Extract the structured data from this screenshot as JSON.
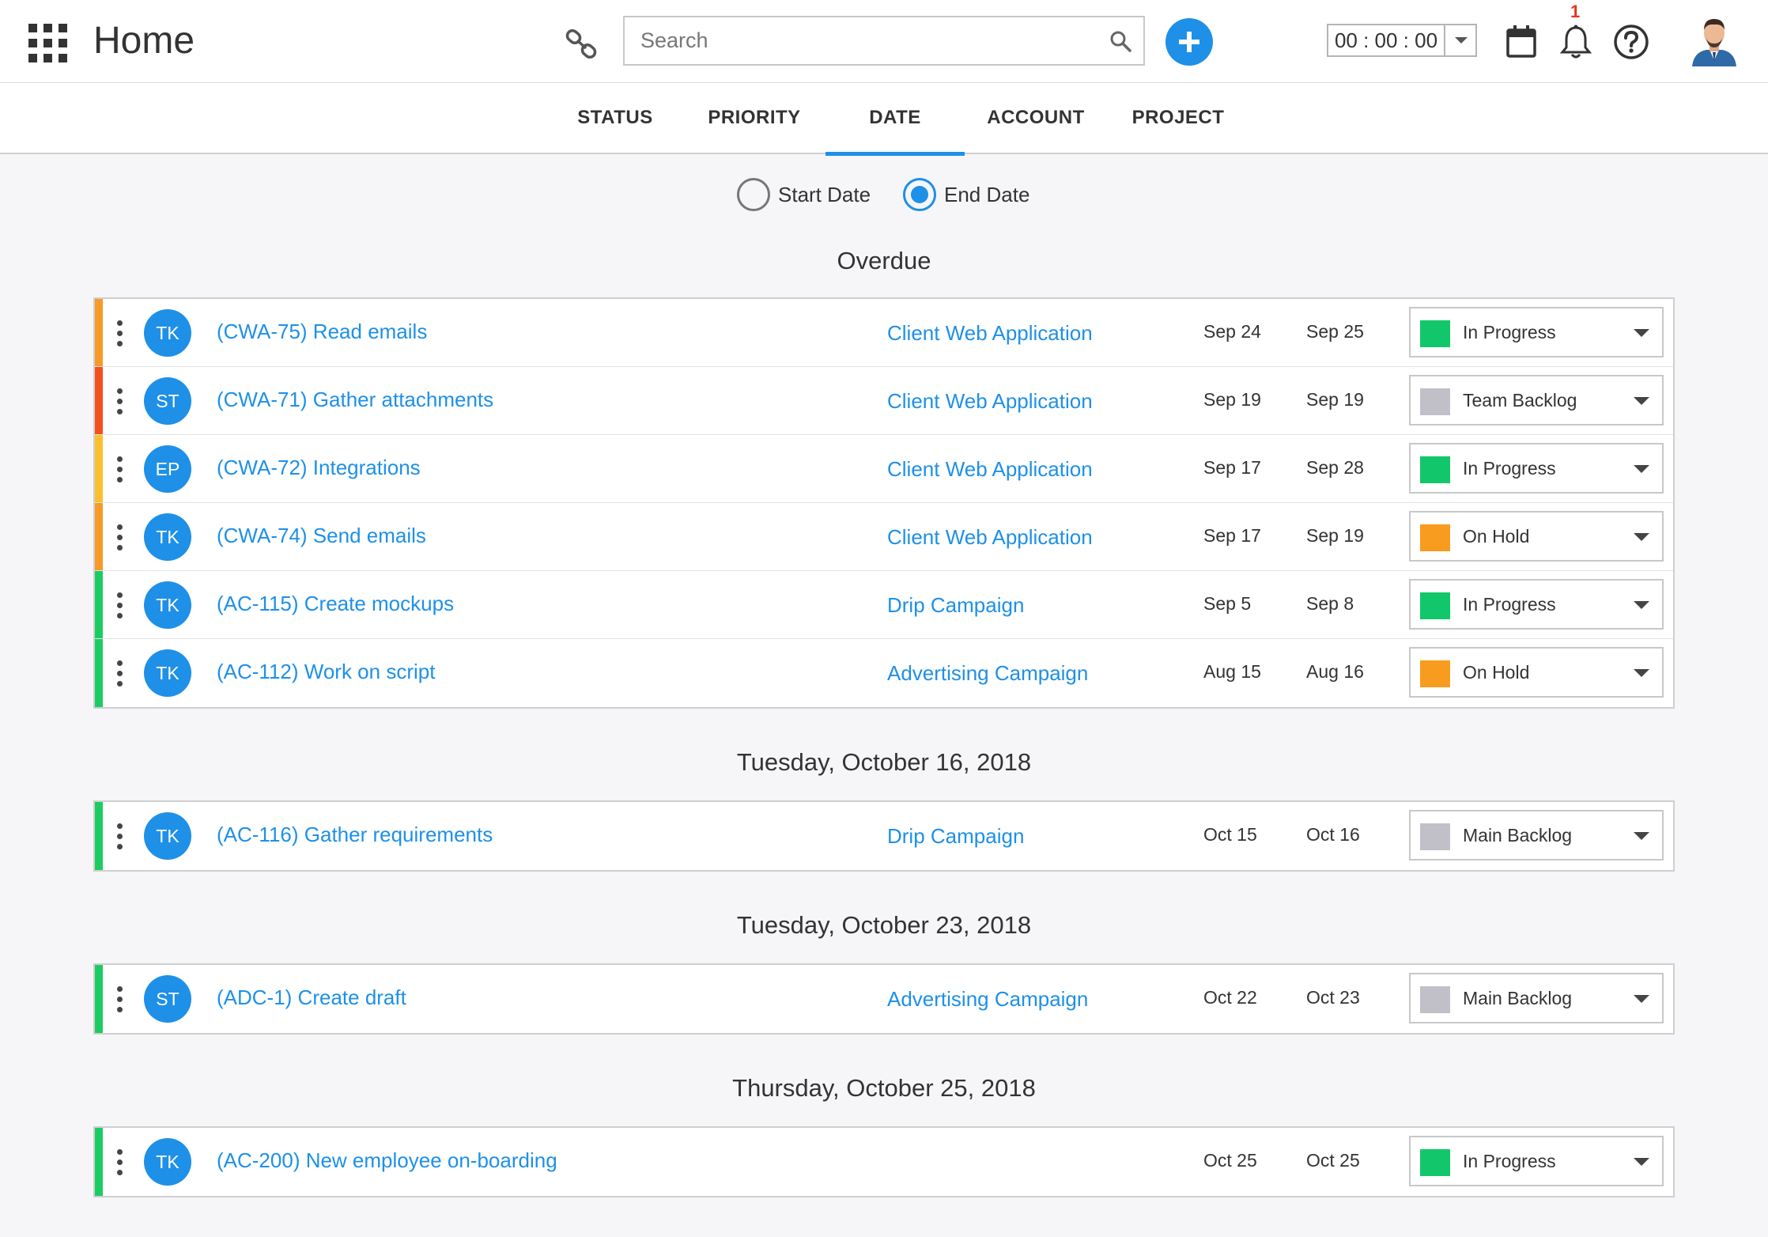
{
  "header": {
    "title": "Home",
    "search_placeholder": "Search",
    "timer": "00 : 00 : 00",
    "notification_count": "1"
  },
  "tabs": [
    {
      "label": "STATUS"
    },
    {
      "label": "PRIORITY"
    },
    {
      "label": "DATE"
    },
    {
      "label": "ACCOUNT"
    },
    {
      "label": "PROJECT"
    }
  ],
  "date_filter": {
    "start_label": "Start Date",
    "end_label": "End Date",
    "selected": "end"
  },
  "colors": {
    "accent": "#1e90e8",
    "bar_orange": "#f79a28",
    "bar_red": "#f2501f",
    "bar_yellow": "#fbc02d",
    "bar_green": "#1ccc63",
    "status_green": "#12c76b",
    "status_gray": "#c1c0c8",
    "status_orange": "#f79c1f"
  },
  "groups": [
    {
      "title": "Overdue",
      "tasks": [
        {
          "bar": "#f79a28",
          "initials": "TK",
          "title": "(CWA-75) Read emails",
          "project": "Client Web Application",
          "start": "Sep 24",
          "end": "Sep 25",
          "status": "In Progress",
          "status_color": "#12c76b"
        },
        {
          "bar": "#f2501f",
          "initials": "ST",
          "title": "(CWA-71) Gather attachments",
          "project": "Client Web Application",
          "start": "Sep 19",
          "end": "Sep 19",
          "status": "Team Backlog",
          "status_color": "#c1c0c8"
        },
        {
          "bar": "#fbc02d",
          "initials": "EP",
          "title": "(CWA-72) Integrations",
          "project": "Client Web Application",
          "start": "Sep 17",
          "end": "Sep 28",
          "status": "In Progress",
          "status_color": "#12c76b"
        },
        {
          "bar": "#f79a28",
          "initials": "TK",
          "title": "(CWA-74) Send emails",
          "project": "Client Web Application",
          "start": "Sep 17",
          "end": "Sep 19",
          "status": "On Hold",
          "status_color": "#f79c1f"
        },
        {
          "bar": "#1ccc63",
          "initials": "TK",
          "title": "(AC-115) Create mockups",
          "project": "Drip Campaign",
          "start": "Sep 5",
          "end": "Sep 8",
          "status": "In Progress",
          "status_color": "#12c76b"
        },
        {
          "bar": "#1ccc63",
          "initials": "TK",
          "title": "(AC-112) Work on script",
          "project": "Advertising Campaign",
          "start": "Aug 15",
          "end": "Aug 16",
          "status": "On Hold",
          "status_color": "#f79c1f"
        }
      ]
    },
    {
      "title": "Tuesday, October 16, 2018",
      "tasks": [
        {
          "bar": "#1ccc63",
          "initials": "TK",
          "title": "(AC-116) Gather requirements",
          "project": "Drip Campaign",
          "start": "Oct 15",
          "end": "Oct 16",
          "status": "Main Backlog",
          "status_color": "#c1c0c8"
        }
      ]
    },
    {
      "title": "Tuesday, October 23, 2018",
      "tasks": [
        {
          "bar": "#1ccc63",
          "initials": "ST",
          "title": "(ADC-1) Create draft",
          "project": "Advertising Campaign",
          "start": "Oct 22",
          "end": "Oct 23",
          "status": "Main Backlog",
          "status_color": "#c1c0c8"
        }
      ]
    },
    {
      "title": "Thursday, October 25, 2018",
      "tasks": [
        {
          "bar": "#1ccc63",
          "initials": "TK",
          "title": "(AC-200) New employee on-boarding",
          "project": "",
          "start": "Oct 25",
          "end": "Oct 25",
          "status": "In Progress",
          "status_color": "#12c76b"
        }
      ]
    }
  ]
}
